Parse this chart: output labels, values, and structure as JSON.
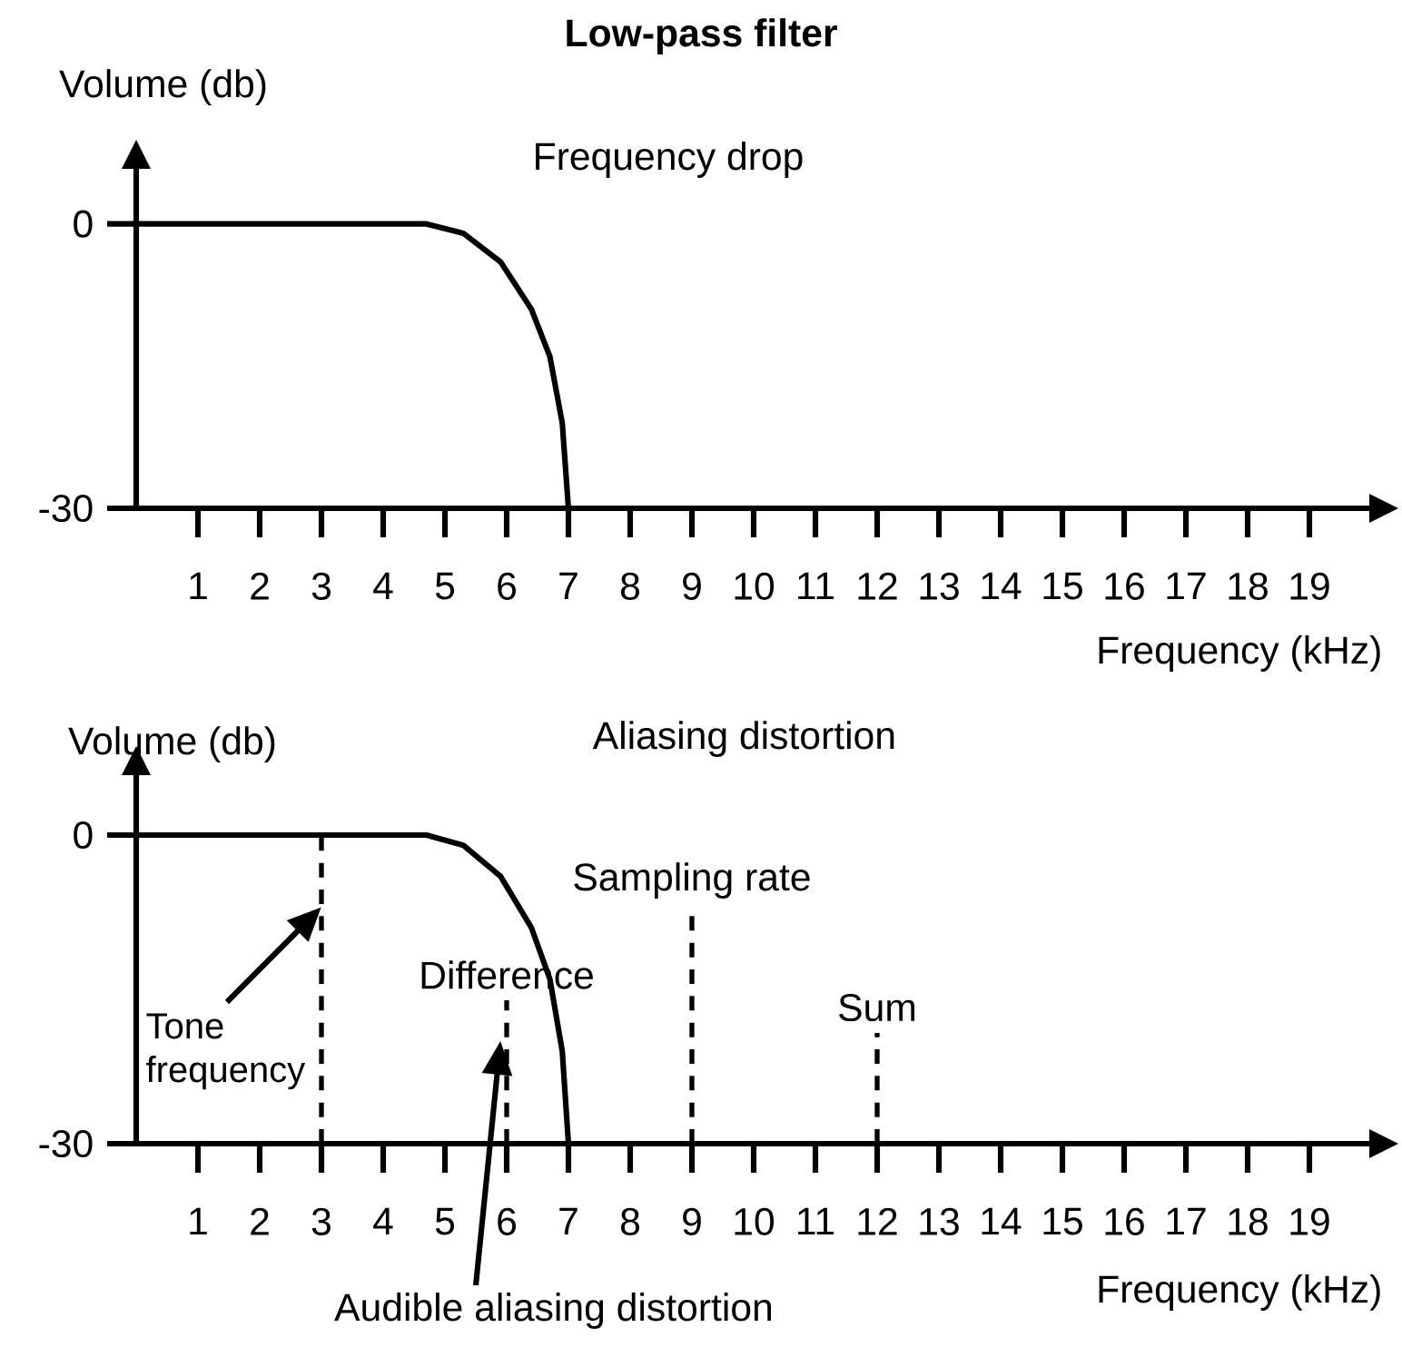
{
  "chart_data": [
    {
      "type": "line",
      "title": "Low-pass filter",
      "subtitle": "Frequency drop",
      "xlabel": "Frequency (kHz)",
      "ylabel": "Volume (db)",
      "x": [
        0,
        4.7,
        5.3,
        5.9,
        6.4,
        6.7,
        6.9,
        7
      ],
      "values": [
        0,
        0,
        -1,
        -4,
        -9,
        -14,
        -21,
        -30
      ],
      "color": "#000000",
      "xlim": [
        0,
        20
      ],
      "ylim": [
        -30,
        6
      ],
      "xticks": [
        1,
        2,
        3,
        4,
        5,
        6,
        7,
        8,
        9,
        10,
        11,
        12,
        13,
        14,
        15,
        16,
        17,
        18,
        19
      ],
      "yticks": [
        -30,
        0
      ],
      "grid": false,
      "marker": "none",
      "line_style": "solid"
    },
    {
      "type": "line",
      "title": "Aliasing distortion",
      "xlabel": "Frequency (kHz)",
      "ylabel": "Volume (db)",
      "x": [
        0,
        4.7,
        5.3,
        5.9,
        6.4,
        6.7,
        6.9,
        7
      ],
      "values": [
        0,
        0,
        -1,
        -4,
        -9,
        -14,
        -21,
        -30
      ],
      "color": "#000000",
      "xlim": [
        0,
        20
      ],
      "ylim": [
        -30,
        6
      ],
      "xticks": [
        1,
        2,
        3,
        4,
        5,
        6,
        7,
        8,
        9,
        10,
        11,
        12,
        13,
        14,
        15,
        16,
        17,
        18,
        19
      ],
      "yticks": [
        -30,
        0
      ],
      "grid": false,
      "marker": "none",
      "line_style": "solid",
      "ref_lines": [
        {
          "axis": "x",
          "value": 3,
          "line_style": "dashed"
        },
        {
          "axis": "x",
          "value": 6,
          "label": "Difference",
          "line_style": "dashed"
        },
        {
          "axis": "x",
          "value": 9,
          "label": "Sampling rate",
          "line_style": "dashed"
        },
        {
          "axis": "x",
          "value": 12,
          "label": "Sum",
          "line_style": "dashed"
        }
      ],
      "annotations": [
        "Tone frequency",
        "Audible aliasing distortion"
      ]
    }
  ]
}
